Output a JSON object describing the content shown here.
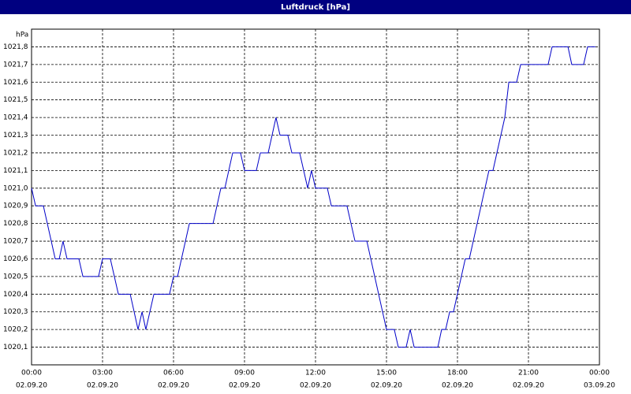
{
  "chart_data": {
    "type": "line",
    "title": "Luftdruck [hPa]",
    "y_unit": "hPa",
    "x": [
      0,
      0.17,
      0.5,
      1,
      1.17,
      1.33,
      1.5,
      2,
      2.17,
      2.83,
      3,
      3.33,
      3.67,
      4.17,
      4.5,
      4.67,
      4.83,
      5.17,
      5.83,
      6,
      6.17,
      6.67,
      7.67,
      8,
      8.17,
      8.5,
      8.83,
      9,
      9.5,
      9.67,
      10,
      10.33,
      10.5,
      10.83,
      11,
      11.33,
      11.67,
      11.83,
      12,
      12.5,
      12.67,
      13.33,
      13.67,
      14.17,
      15,
      15.33,
      15.5,
      15.83,
      16,
      16.17,
      17.17,
      17.33,
      17.5,
      17.67,
      17.83,
      18.33,
      18.5,
      19.33,
      19.5,
      20,
      20.17,
      20.5,
      20.67,
      21.83,
      22,
      22.67,
      22.83,
      23.33,
      23.5,
      23.83
    ],
    "series": [
      {
        "name": "Luftdruck",
        "color": "#0000c8",
        "values": [
          1021.0,
          1020.9,
          1020.9,
          1020.6,
          1020.6,
          1020.7,
          1020.6,
          1020.6,
          1020.5,
          1020.5,
          1020.6,
          1020.6,
          1020.4,
          1020.4,
          1020.2,
          1020.3,
          1020.2,
          1020.4,
          1020.4,
          1020.5,
          1020.5,
          1020.8,
          1020.8,
          1021.0,
          1021.0,
          1021.2,
          1021.2,
          1021.1,
          1021.1,
          1021.2,
          1021.2,
          1021.4,
          1021.3,
          1021.3,
          1021.2,
          1021.2,
          1021.0,
          1021.1,
          1021.0,
          1021.0,
          1020.9,
          1020.9,
          1020.7,
          1020.7,
          1020.2,
          1020.2,
          1020.1,
          1020.1,
          1020.2,
          1020.1,
          1020.1,
          1020.2,
          1020.2,
          1020.3,
          1020.3,
          1020.6,
          1020.6,
          1021.1,
          1021.1,
          1021.4,
          1021.6,
          1021.6,
          1021.7,
          1021.7,
          1021.8,
          1021.8,
          1021.7,
          1021.7,
          1021.8,
          1021.8
        ]
      }
    ],
    "xlim": [
      0,
      24
    ],
    "xticks": [
      {
        "value": 0,
        "label": "00:00",
        "date": "02.09.20"
      },
      {
        "value": 3,
        "label": "03:00",
        "date": "02.09.20"
      },
      {
        "value": 6,
        "label": "06:00",
        "date": "02.09.20"
      },
      {
        "value": 9,
        "label": "09:00",
        "date": "02.09.20"
      },
      {
        "value": 12,
        "label": "12:00",
        "date": "02.09.20"
      },
      {
        "value": 15,
        "label": "15:00",
        "date": "02.09.20"
      },
      {
        "value": 18,
        "label": "18:00",
        "date": "02.09.20"
      },
      {
        "value": 21,
        "label": "21:00",
        "date": "02.09.20"
      },
      {
        "value": 24,
        "label": "00:00",
        "date": "03.09.20"
      }
    ],
    "ylim": [
      1020.0,
      1021.9
    ],
    "yticks": [
      {
        "value": 1020.1,
        "label": "1020,1"
      },
      {
        "value": 1020.2,
        "label": "1020,2"
      },
      {
        "value": 1020.3,
        "label": "1020,3"
      },
      {
        "value": 1020.4,
        "label": "1020,4"
      },
      {
        "value": 1020.5,
        "label": "1020,5"
      },
      {
        "value": 1020.6,
        "label": "1020,6"
      },
      {
        "value": 1020.7,
        "label": "1020,7"
      },
      {
        "value": 1020.8,
        "label": "1020,8"
      },
      {
        "value": 1020.9,
        "label": "1020,9"
      },
      {
        "value": 1021.0,
        "label": "1021,0"
      },
      {
        "value": 1021.1,
        "label": "1021,1"
      },
      {
        "value": 1021.2,
        "label": "1021,2"
      },
      {
        "value": 1021.3,
        "label": "1021,3"
      },
      {
        "value": 1021.4,
        "label": "1021,4"
      },
      {
        "value": 1021.5,
        "label": "1021,5"
      },
      {
        "value": 1021.6,
        "label": "1021,6"
      },
      {
        "value": 1021.7,
        "label": "1021,7"
      },
      {
        "value": 1021.8,
        "label": "1021,8"
      }
    ],
    "grid": true
  }
}
